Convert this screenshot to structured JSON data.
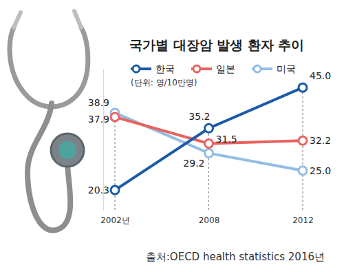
{
  "chart_data": {
    "type": "line",
    "title": "국가별 대장암 발생 환자 추이",
    "subtitle": "(단위: 명/10만명)",
    "source": "출처:OECD health statistics 2016년",
    "categories": [
      "2002년",
      "2008",
      "2012"
    ],
    "series": [
      {
        "name": "한국",
        "color": "#1b5ba8",
        "values": [
          20.3,
          35.2,
          45.0
        ],
        "value_labels": [
          "20.3",
          "35.2",
          "45.0"
        ]
      },
      {
        "name": "일본",
        "color": "#e9625f",
        "values": [
          37.9,
          31.5,
          32.2
        ],
        "value_labels": [
          "37.9",
          "31.5",
          "32.2"
        ]
      },
      {
        "name": "미국",
        "color": "#93bde3",
        "values": [
          38.9,
          29.2,
          25.0
        ],
        "value_labels": [
          "38.9",
          "29.2",
          "25.0"
        ]
      }
    ],
    "ylim": [
      15.5,
      49.5
    ],
    "tick_labels": "x",
    "data_labels": true,
    "legend": "top",
    "marker": "circle",
    "line_style": "solid"
  }
}
